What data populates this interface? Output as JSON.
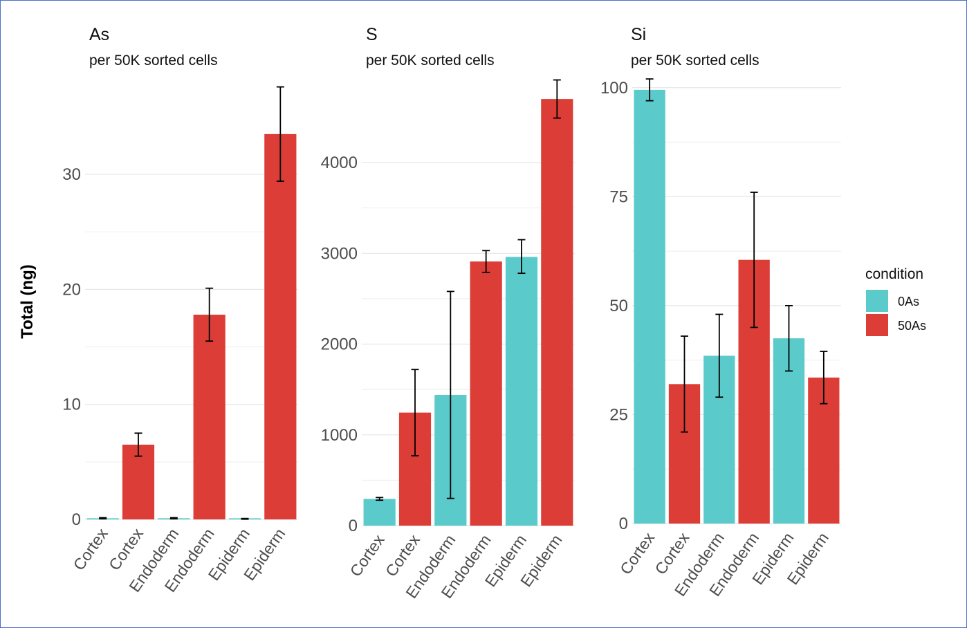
{
  "y_axis_label": "Total (ng)",
  "legend": {
    "title": "condition",
    "entries": [
      {
        "label": "0As",
        "color": "#5BCACB"
      },
      {
        "label": "50As",
        "color": "#DC3E37"
      }
    ]
  },
  "chart_data": [
    {
      "type": "bar",
      "title": "As",
      "subtitle": "per 50K sorted cells",
      "ylabel": "Total (ng)",
      "categories": [
        "Cortex",
        "Cortex",
        "Endoderm",
        "Endoderm",
        "Epiderm",
        "Epiderm"
      ],
      "conditions": [
        "0As",
        "50As",
        "0As",
        "50As",
        "0As",
        "50As"
      ],
      "values": [
        0.1,
        6.5,
        0.1,
        17.8,
        0.05,
        33.5
      ],
      "err_low": [
        0.05,
        5.5,
        0.05,
        15.5,
        0.02,
        29.4
      ],
      "err_high": [
        0.15,
        7.5,
        0.15,
        20.1,
        0.08,
        37.6
      ],
      "yticks": [
        0,
        10,
        20,
        30
      ],
      "ylim": [
        0,
        38
      ],
      "grid": true
    },
    {
      "type": "bar",
      "title": "S",
      "subtitle": "per 50K sorted cells",
      "ylabel": "Total (ng)",
      "categories": [
        "Cortex",
        "Cortex",
        "Endoderm",
        "Endoderm",
        "Epiderm",
        "Epiderm"
      ],
      "conditions": [
        "0As",
        "50As",
        "0As",
        "50As",
        "0As",
        "50As"
      ],
      "values": [
        295,
        1245,
        1440,
        2910,
        2960,
        4700
      ],
      "err_low": [
        280,
        770,
        300,
        2790,
        2780,
        4490
      ],
      "err_high": [
        310,
        1720,
        2580,
        3030,
        3150,
        4910
      ],
      "yticks": [
        0,
        1000,
        2000,
        3000,
        4000
      ],
      "ylim": [
        0,
        4960
      ],
      "grid": true
    },
    {
      "type": "bar",
      "title": "Si",
      "subtitle": "per 50K sorted cells",
      "ylabel": "Total (ng)",
      "categories": [
        "Cortex",
        "Cortex",
        "Endoderm",
        "Endoderm",
        "Epiderm",
        "Epiderm"
      ],
      "conditions": [
        "0As",
        "50As",
        "0As",
        "50As",
        "0As",
        "50As"
      ],
      "values": [
        99.5,
        32,
        38.5,
        60.5,
        42.5,
        33.5
      ],
      "err_low": [
        97,
        21,
        29,
        45,
        35,
        27.5
      ],
      "err_high": [
        102,
        43,
        48,
        76,
        50,
        39.5
      ],
      "yticks": [
        0,
        25,
        50,
        75,
        100
      ],
      "ylim": [
        0,
        102.5
      ],
      "grid": true
    }
  ]
}
